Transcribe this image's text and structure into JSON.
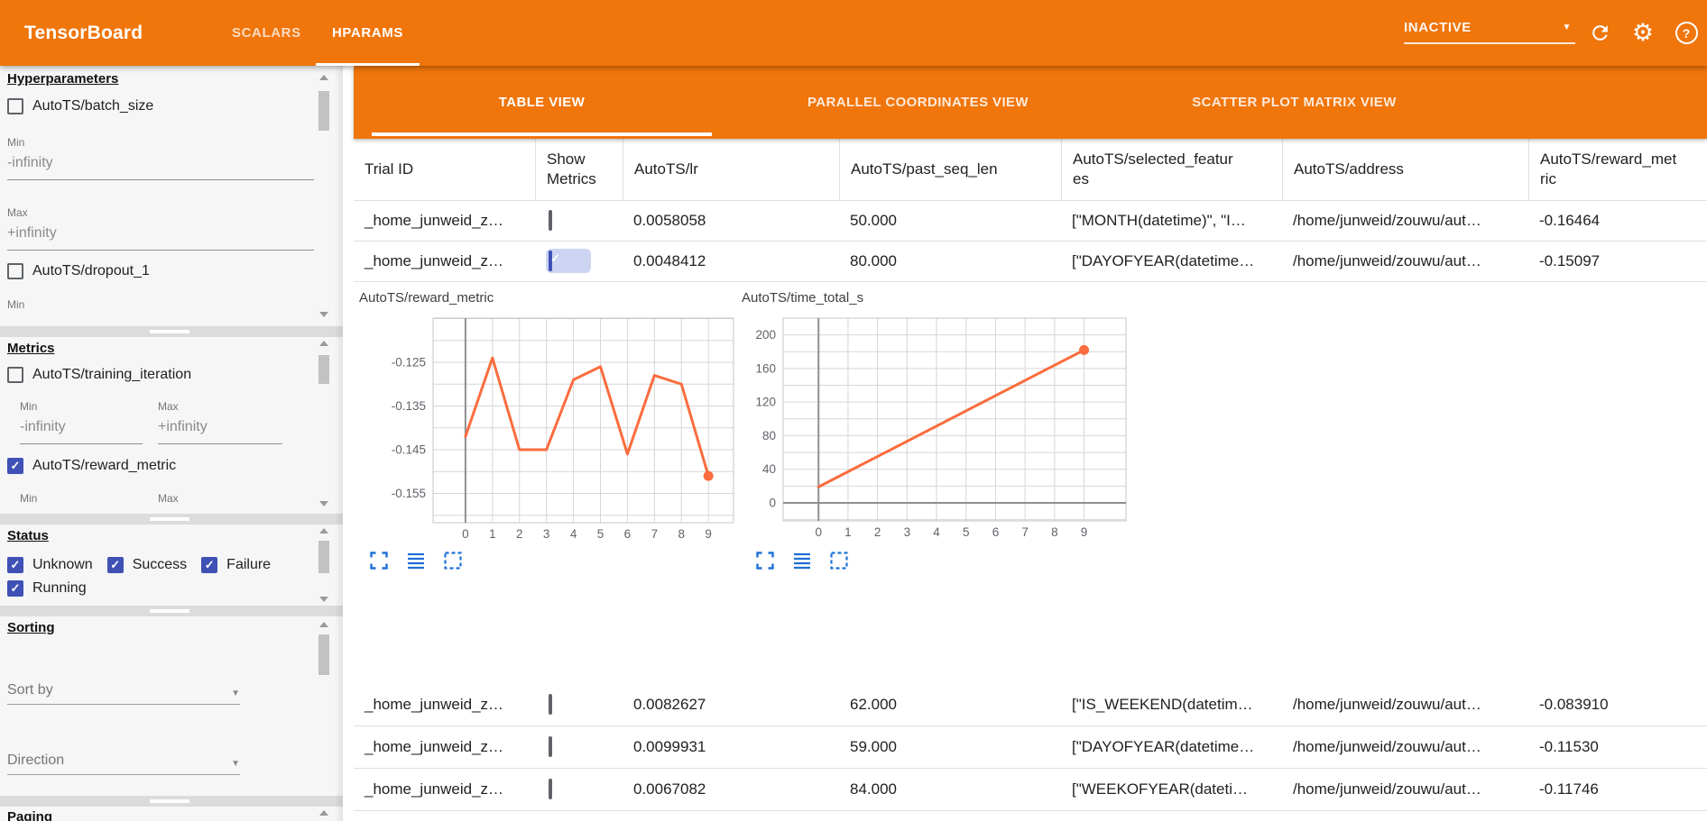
{
  "topbar": {
    "title": "TensorBoard",
    "nav_tabs": [
      {
        "label": "SCALARS",
        "active": false
      },
      {
        "label": "HPARAMS",
        "active": true
      }
    ],
    "run_status_dropdown": {
      "value": "INACTIVE"
    },
    "icons": [
      "refresh-icon",
      "gear-icon",
      "help-icon"
    ]
  },
  "view_tabs": [
    {
      "label": "TABLE VIEW",
      "active": true
    },
    {
      "label": "PARALLEL COORDINATES VIEW",
      "active": false
    },
    {
      "label": "SCATTER PLOT MATRIX VIEW",
      "active": false
    }
  ],
  "sidebar": {
    "sections": {
      "hyperparameters": {
        "title": "Hyperparameters",
        "param1": {
          "label": "AutoTS/batch_size",
          "checked": false
        },
        "min_label": "Min",
        "min_value": "-infinity",
        "max_label": "Max",
        "max_value": "+infinity",
        "param2": {
          "label": "AutoTS/dropout_1",
          "checked": false
        },
        "param2_min_label": "Min"
      },
      "metrics": {
        "title": "Metrics",
        "metric1": {
          "label": "AutoTS/training_iteration",
          "checked": false
        },
        "min_label": "Min",
        "min_value": "-infinity",
        "max_label": "Max",
        "max_value": "+infinity",
        "metric2": {
          "label": "AutoTS/reward_metric",
          "checked": true
        },
        "metric2_min_label": "Min",
        "metric2_max_label": "Max"
      },
      "status": {
        "title": "Status",
        "options": [
          {
            "label": "Unknown",
            "checked": true
          },
          {
            "label": "Success",
            "checked": true
          },
          {
            "label": "Failure",
            "checked": true
          },
          {
            "label": "Running",
            "checked": true
          }
        ]
      },
      "sorting": {
        "title": "Sorting",
        "sort_by_placeholder": "Sort by",
        "direction_placeholder": "Direction"
      },
      "paging": {
        "title": "Paging"
      }
    }
  },
  "table": {
    "columns": [
      "Trial ID",
      "Show Metrics",
      "AutoTS/lr",
      "AutoTS/past_seq_len",
      "AutoTS/selected_features",
      "AutoTS/address",
      "AutoTS/reward_metric"
    ],
    "rows": [
      {
        "trial_id": "_home_junweid_z…",
        "show_metrics": false,
        "lr": "0.0058058",
        "past_seq_len": "50.000",
        "selected_features": "[\"MONTH(datetime)\", \"I…",
        "address": "/home/junweid/zouwu/aut…",
        "reward_metric": "-0.16464"
      },
      {
        "trial_id": "_home_junweid_z…",
        "show_metrics": true,
        "lr": "0.0048412",
        "past_seq_len": "80.000",
        "selected_features": "[\"DAYOFYEAR(datetime…",
        "address": "/home/junweid/zouwu/aut…",
        "reward_metric": "-0.15097"
      },
      {
        "trial_id": "_home_junweid_z…",
        "show_metrics": false,
        "lr": "0.0082627",
        "past_seq_len": "62.000",
        "selected_features": "[\"IS_WEEKEND(datetim…",
        "address": "/home/junweid/zouwu/aut…",
        "reward_metric": "-0.083910"
      },
      {
        "trial_id": "_home_junweid_z…",
        "show_metrics": false,
        "lr": "0.0099931",
        "past_seq_len": "59.000",
        "selected_features": "[\"DAYOFYEAR(datetime…",
        "address": "/home/junweid/zouwu/aut…",
        "reward_metric": "-0.11530"
      },
      {
        "trial_id": "_home_junweid_z…",
        "show_metrics": false,
        "lr": "0.0067082",
        "past_seq_len": "84.000",
        "selected_features": "[\"WEEKOFYEAR(dateti…",
        "address": "/home/junweid/zouwu/aut…",
        "reward_metric": "-0.11746"
      }
    ],
    "chart_toolbar_icons": [
      "expand-icon",
      "lines-icon",
      "dashed-box-icon"
    ]
  },
  "chart_data": [
    {
      "type": "line",
      "title": "AutoTS/reward_metric",
      "x": [
        0,
        1,
        2,
        3,
        4,
        5,
        6,
        7,
        8,
        9
      ],
      "values": [
        -0.142,
        -0.124,
        -0.145,
        -0.145,
        -0.129,
        -0.126,
        -0.146,
        -0.128,
        -0.13,
        -0.151
      ],
      "xlabel": "",
      "ylabel": "",
      "xlim": [
        -1.2,
        9.93
      ],
      "ylim": [
        -0.1617,
        -0.1149
      ],
      "xticks": [
        0,
        1,
        2,
        3,
        4,
        5,
        6,
        7,
        8,
        9
      ],
      "yticks": [
        -0.125,
        -0.135,
        -0.145,
        -0.155
      ],
      "ytick_decimals": 3,
      "ygrid_step": 0.005,
      "grid": true,
      "legend": false,
      "line_color": "#fb6c3e",
      "end_dot": true,
      "zero_x_axis_line": true,
      "zero_y_axis_line": false
    },
    {
      "type": "line",
      "title": "AutoTS/time_total_s",
      "x": [
        0,
        9
      ],
      "values": [
        19,
        182
      ],
      "xlabel": "",
      "ylabel": "",
      "xlim": [
        -1.2,
        10.42
      ],
      "ylim": [
        -21.5,
        220
      ],
      "xticks": [
        0,
        1,
        2,
        3,
        4,
        5,
        6,
        7,
        8,
        9
      ],
      "yticks": [
        200,
        160,
        120,
        80,
        40,
        0
      ],
      "ytick_decimals": 0,
      "ygrid_step": 20,
      "grid": true,
      "legend": false,
      "line_color": "#fb6c3e",
      "end_dot": true,
      "zero_x_axis_line": true,
      "zero_y_axis_line": true
    }
  ],
  "colors": {
    "topbar_orange": "#f0750b",
    "accent_underline": "#ffffff",
    "checkbox_checked": "#3f51b5",
    "chart_line": "#fb6c3e",
    "toolbar_icon_blue": "#1d6fd6",
    "row_border": "#e0e0e0"
  }
}
